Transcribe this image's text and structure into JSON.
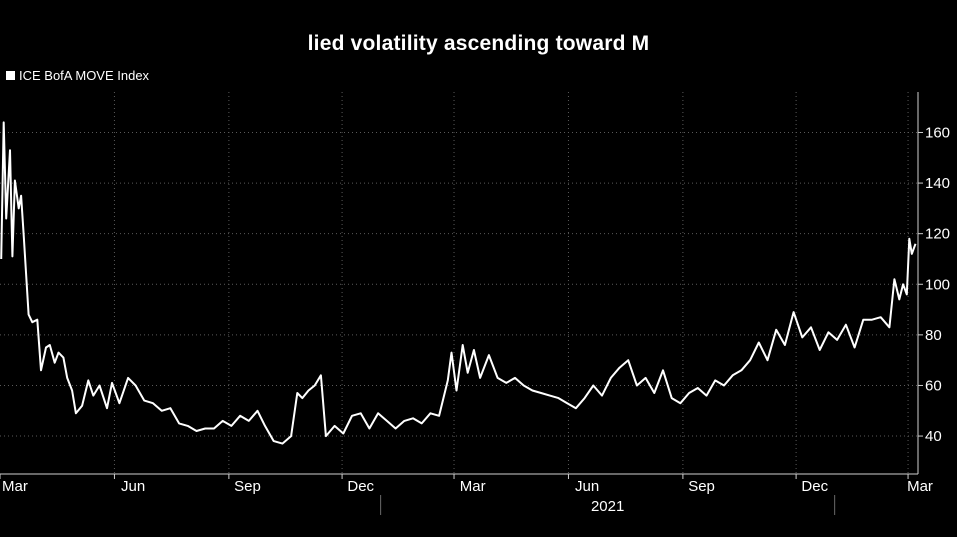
{
  "title": "lied volatility ascending toward M",
  "legend": {
    "label": "ICE BofA MOVE Index",
    "color": "#ffffff"
  },
  "chart_data": {
    "type": "line",
    "title": "lied volatility ascending toward M",
    "xlabel": "",
    "ylabel": "",
    "ylim": [
      25,
      176
    ],
    "y_ticks": [
      40,
      60,
      80,
      100,
      120,
      140,
      160
    ],
    "x_tick_labels": [
      "Mar",
      "Jun",
      "Sep",
      "Dec",
      "Mar",
      "Jun",
      "Sep",
      "Dec",
      "Mar"
    ],
    "year_label": "2021",
    "grid": true,
    "legend_position": "top-left",
    "series": [
      {
        "name": "ICE BofA MOVE Index",
        "color": "#ffffff",
        "points": [
          [
            "2020-03-02",
            110
          ],
          [
            "2020-03-04",
            164
          ],
          [
            "2020-03-06",
            126
          ],
          [
            "2020-03-09",
            153
          ],
          [
            "2020-03-11",
            111
          ],
          [
            "2020-03-13",
            141
          ],
          [
            "2020-03-16",
            130
          ],
          [
            "2020-03-18",
            135
          ],
          [
            "2020-03-20",
            120
          ],
          [
            "2020-03-24",
            88
          ],
          [
            "2020-03-27",
            85
          ],
          [
            "2020-03-31",
            86
          ],
          [
            "2020-04-03",
            66
          ],
          [
            "2020-04-07",
            75
          ],
          [
            "2020-04-10",
            76
          ],
          [
            "2020-04-14",
            69
          ],
          [
            "2020-04-17",
            73
          ],
          [
            "2020-04-21",
            71
          ],
          [
            "2020-04-24",
            63
          ],
          [
            "2020-04-28",
            58
          ],
          [
            "2020-05-01",
            49
          ],
          [
            "2020-05-06",
            52
          ],
          [
            "2020-05-11",
            62
          ],
          [
            "2020-05-15",
            56
          ],
          [
            "2020-05-20",
            60
          ],
          [
            "2020-05-26",
            51
          ],
          [
            "2020-05-30",
            61
          ],
          [
            "2020-06-05",
            53
          ],
          [
            "2020-06-12",
            63
          ],
          [
            "2020-06-18",
            60
          ],
          [
            "2020-06-25",
            54
          ],
          [
            "2020-07-02",
            53
          ],
          [
            "2020-07-09",
            50
          ],
          [
            "2020-07-16",
            51
          ],
          [
            "2020-07-23",
            45
          ],
          [
            "2020-07-30",
            44
          ],
          [
            "2020-08-06",
            42
          ],
          [
            "2020-08-13",
            43
          ],
          [
            "2020-08-20",
            43
          ],
          [
            "2020-08-27",
            46
          ],
          [
            "2020-09-03",
            44
          ],
          [
            "2020-09-10",
            48
          ],
          [
            "2020-09-17",
            46
          ],
          [
            "2020-09-24",
            50
          ],
          [
            "2020-09-30",
            44
          ],
          [
            "2020-10-07",
            38
          ],
          [
            "2020-10-14",
            37
          ],
          [
            "2020-10-21",
            40
          ],
          [
            "2020-10-26",
            57
          ],
          [
            "2020-10-30",
            55
          ],
          [
            "2020-11-04",
            58
          ],
          [
            "2020-11-09",
            60
          ],
          [
            "2020-11-14",
            64
          ],
          [
            "2020-11-18",
            40
          ],
          [
            "2020-11-25",
            44
          ],
          [
            "2020-12-02",
            41
          ],
          [
            "2020-12-09",
            48
          ],
          [
            "2020-12-16",
            49
          ],
          [
            "2020-12-23",
            43
          ],
          [
            "2020-12-30",
            49
          ],
          [
            "2021-01-06",
            46
          ],
          [
            "2021-01-13",
            43
          ],
          [
            "2021-01-20",
            46
          ],
          [
            "2021-01-27",
            47
          ],
          [
            "2021-02-03",
            45
          ],
          [
            "2021-02-10",
            49
          ],
          [
            "2021-02-17",
            48
          ],
          [
            "2021-02-24",
            62
          ],
          [
            "2021-02-27",
            73
          ],
          [
            "2021-03-03",
            58
          ],
          [
            "2021-03-08",
            76
          ],
          [
            "2021-03-12",
            65
          ],
          [
            "2021-03-17",
            74
          ],
          [
            "2021-03-22",
            63
          ],
          [
            "2021-03-29",
            72
          ],
          [
            "2021-04-05",
            63
          ],
          [
            "2021-04-12",
            61
          ],
          [
            "2021-04-19",
            63
          ],
          [
            "2021-04-26",
            60
          ],
          [
            "2021-05-03",
            58
          ],
          [
            "2021-05-10",
            57
          ],
          [
            "2021-05-17",
            56
          ],
          [
            "2021-05-24",
            55
          ],
          [
            "2021-05-31",
            53
          ],
          [
            "2021-06-07",
            51
          ],
          [
            "2021-06-14",
            55
          ],
          [
            "2021-06-21",
            60
          ],
          [
            "2021-06-28",
            56
          ],
          [
            "2021-07-05",
            63
          ],
          [
            "2021-07-12",
            67
          ],
          [
            "2021-07-19",
            70
          ],
          [
            "2021-07-26",
            60
          ],
          [
            "2021-08-02",
            63
          ],
          [
            "2021-08-09",
            57
          ],
          [
            "2021-08-16",
            66
          ],
          [
            "2021-08-23",
            55
          ],
          [
            "2021-08-30",
            53
          ],
          [
            "2021-09-06",
            57
          ],
          [
            "2021-09-13",
            59
          ],
          [
            "2021-09-20",
            56
          ],
          [
            "2021-09-27",
            62
          ],
          [
            "2021-10-04",
            60
          ],
          [
            "2021-10-11",
            64
          ],
          [
            "2021-10-18",
            66
          ],
          [
            "2021-10-25",
            70
          ],
          [
            "2021-11-01",
            77
          ],
          [
            "2021-11-08",
            70
          ],
          [
            "2021-11-15",
            82
          ],
          [
            "2021-11-22",
            76
          ],
          [
            "2021-11-29",
            89
          ],
          [
            "2021-12-06",
            79
          ],
          [
            "2021-12-13",
            83
          ],
          [
            "2021-12-20",
            74
          ],
          [
            "2021-12-27",
            81
          ],
          [
            "2022-01-03",
            78
          ],
          [
            "2022-01-10",
            84
          ],
          [
            "2022-01-17",
            75
          ],
          [
            "2022-01-24",
            86
          ],
          [
            "2022-01-31",
            86
          ],
          [
            "2022-02-07",
            87
          ],
          [
            "2022-02-14",
            83
          ],
          [
            "2022-02-18",
            102
          ],
          [
            "2022-02-22",
            94
          ],
          [
            "2022-02-25",
            100
          ],
          [
            "2022-02-28",
            96
          ],
          [
            "2022-03-02",
            118
          ],
          [
            "2022-03-04",
            112
          ],
          [
            "2022-03-07",
            116
          ]
        ]
      }
    ]
  }
}
